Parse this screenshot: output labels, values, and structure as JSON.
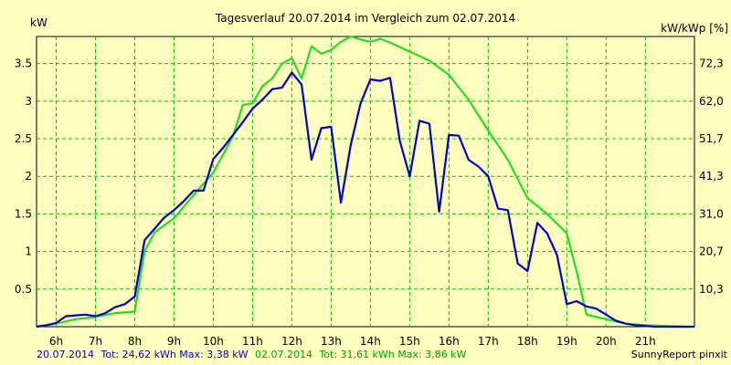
{
  "chart_data": {
    "type": "line",
    "title": "Tagesverlauf 20.07.2014 im Vergleich zum 02.07.2014",
    "ylabel": "kW",
    "y2label": "kW/kWp [%]",
    "x_ticks": [
      "6h",
      "7h",
      "8h",
      "9h",
      "10h",
      "11h",
      "12h",
      "13h",
      "14h",
      "15h",
      "16h",
      "17h",
      "18h",
      "19h",
      "20h",
      "21h"
    ],
    "y_ticks": [
      "0.5",
      "1",
      "1.5",
      "2",
      "2.5",
      "3",
      "3.5"
    ],
    "y2_ticks": [
      "10,3",
      "20,7",
      "31,0",
      "41,3",
      "51,7",
      "62,0",
      "72,3"
    ],
    "xlim": [
      5.5,
      22.25
    ],
    "ylim": [
      0,
      3.86
    ],
    "grid": true,
    "colors": {
      "background": "#ffffc0",
      "grid": "#00c000",
      "series1": "#0000cc",
      "series2": "#22dd22"
    },
    "series": [
      {
        "name": "20.07.2014",
        "color": "#0000cc",
        "x": [
          5.5,
          5.75,
          6.0,
          6.25,
          6.5,
          6.75,
          7.0,
          7.25,
          7.5,
          7.75,
          8.0,
          8.25,
          8.5,
          8.75,
          9.0,
          9.25,
          9.5,
          9.75,
          10.0,
          10.25,
          10.5,
          10.75,
          11.0,
          11.25,
          11.5,
          11.75,
          12.0,
          12.25,
          12.5,
          12.75,
          13.0,
          13.25,
          13.5,
          13.75,
          14.0,
          14.25,
          14.5,
          14.75,
          15.0,
          15.25,
          15.5,
          15.75,
          16.0,
          16.25,
          16.5,
          16.75,
          17.0,
          17.25,
          17.5,
          17.75,
          18.0,
          18.25,
          18.5,
          18.75,
          19.0,
          19.25,
          19.5,
          19.75,
          20.0,
          20.25,
          20.5,
          20.75,
          21.0,
          21.25,
          21.5,
          22.25
        ],
        "values": [
          0,
          0.02,
          0.05,
          0.14,
          0.15,
          0.16,
          0.14,
          0.18,
          0.26,
          0.3,
          0.4,
          1.15,
          1.3,
          1.45,
          1.55,
          1.67,
          1.81,
          1.81,
          2.23,
          2.38,
          2.55,
          2.72,
          2.9,
          3.02,
          3.16,
          3.18,
          3.38,
          3.22,
          2.22,
          2.64,
          2.66,
          1.65,
          2.42,
          2.97,
          3.29,
          3.27,
          3.31,
          2.47,
          2.0,
          2.74,
          2.7,
          1.53,
          2.55,
          2.54,
          2.22,
          2.13,
          2.0,
          1.57,
          1.55,
          0.84,
          0.74,
          1.38,
          1.24,
          0.95,
          0.3,
          0.34,
          0.27,
          0.24,
          0.16,
          0.08,
          0.04,
          0.02,
          0.01,
          0.0,
          0.0,
          0.0
        ]
      },
      {
        "name": "02.07.2014",
        "color": "#22dd22",
        "x": [
          5.5,
          6.0,
          6.5,
          7.0,
          7.5,
          8.0,
          8.25,
          8.5,
          8.75,
          9.0,
          9.5,
          10.0,
          10.5,
          10.75,
          11.0,
          11.25,
          11.5,
          11.75,
          12.0,
          12.25,
          12.5,
          12.75,
          13.0,
          13.25,
          13.5,
          13.75,
          14.0,
          14.25,
          14.5,
          15.0,
          15.5,
          16.0,
          16.5,
          17.0,
          17.5,
          18.0,
          18.5,
          19.0,
          19.25,
          19.5,
          20.0,
          20.5,
          21.0,
          21.5,
          22.0
        ],
        "values": [
          0,
          0.04,
          0.1,
          0.13,
          0.18,
          0.2,
          1.0,
          1.25,
          1.35,
          1.44,
          1.75,
          2.05,
          2.53,
          2.95,
          2.97,
          3.2,
          3.3,
          3.5,
          3.57,
          3.3,
          3.73,
          3.63,
          3.68,
          3.79,
          3.86,
          3.82,
          3.79,
          3.83,
          3.78,
          3.66,
          3.54,
          3.35,
          3.02,
          2.61,
          2.22,
          1.71,
          1.5,
          1.24,
          0.74,
          0.16,
          0.1,
          0.04,
          0.02,
          0.01,
          0.0
        ]
      }
    ]
  },
  "footer": {
    "series1_date": "20.07.2014",
    "series1_stats": "Tot: 24,62 kWh Max: 3,38 kW",
    "series2_date": "02.07.2014",
    "series2_stats": "Tot: 31,61 kWh Max: 3,86 kW",
    "brand": "SunnyReport pinxit"
  }
}
